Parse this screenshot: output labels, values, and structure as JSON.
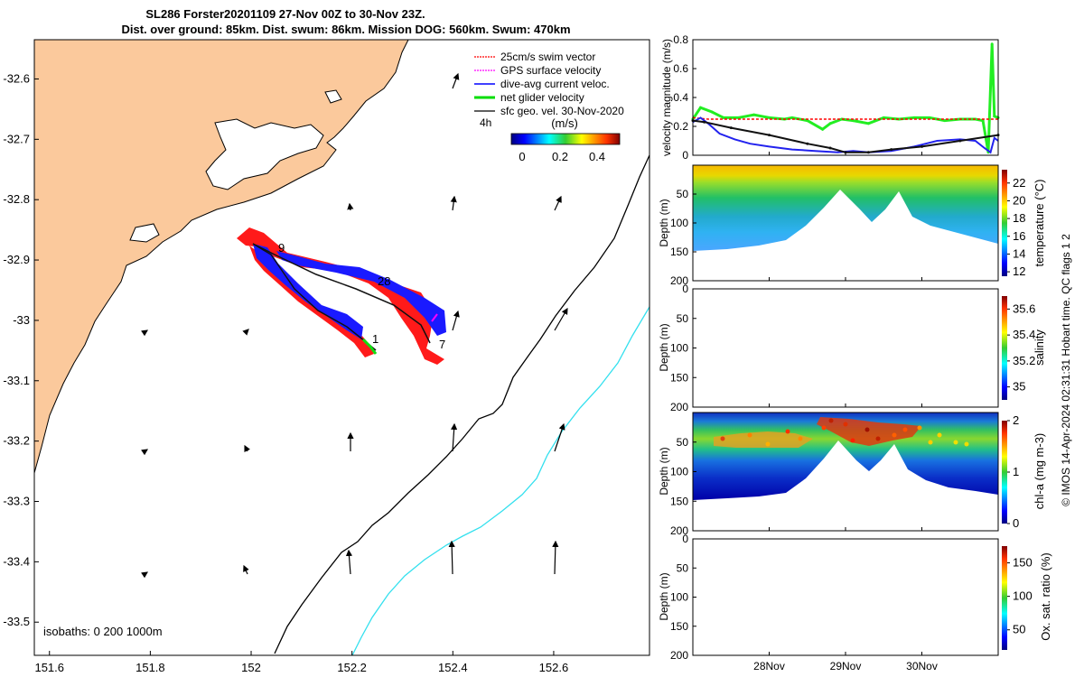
{
  "title_line1": "SL286 Forster20201109 27-Nov 00Z to 30-Nov 23Z.",
  "title_line2": "Dist. over ground: 85km. Dist. swum: 86km. Mission DOG: 560km. Swum: 470km",
  "credit": "© IMOS 14-Apr-2024 02:31:31 Hobart time. QC flags 1  2",
  "map": {
    "x_ticks": [
      "151.6",
      "151.8",
      "152",
      "152.2",
      "152.4",
      "152.6"
    ],
    "y_ticks": [
      "-32.6",
      "-32.7",
      "-32.8",
      "-32.9",
      "-33",
      "-33.1",
      "-33.2",
      "-33.3",
      "-33.4",
      "-33.5"
    ],
    "xlim": [
      151.57,
      152.79
    ],
    "ylim": [
      -33.555,
      -32.535
    ],
    "legend": [
      {
        "label": "25cm/s swim vector",
        "color": "#ff0000"
      },
      {
        "label": "GPS surface velocity",
        "color": "#ff00ff"
      },
      {
        "label": "dive-avg current veloc.",
        "color": "#0000ff"
      },
      {
        "label": "net glider velocity",
        "color": "#00dd00"
      },
      {
        "label": "sfc geo. vel. 30-Nov-2020",
        "color": "#000000"
      }
    ],
    "interval_label": "4h",
    "colorbar_unit": "(m/s)",
    "colorbar_ticks": [
      "0",
      "0.2",
      "0.4"
    ],
    "isobath_text": "isobaths: 0   200  1000m",
    "day_labels": [
      "9",
      "28",
      "1",
      "7"
    ],
    "land_color": "#fbc99c",
    "isobath_200_color": "#000000",
    "isobath_1000_color": "#33e0ee"
  },
  "velocity_panel": {
    "ylabel": "velocity magnitude (m/s)",
    "ylim": [
      0,
      0.8
    ],
    "y_ticks": [
      "0",
      "0.2",
      "0.4",
      "0.6",
      "0.8"
    ],
    "xlim": [
      0,
      4
    ],
    "series": [
      {
        "key": "net",
        "color": "#22ee22",
        "x": [
          0,
          0.1,
          0.25,
          0.4,
          0.6,
          0.8,
          1.0,
          1.2,
          1.3,
          1.5,
          1.7,
          1.8,
          1.95,
          2.1,
          2.3,
          2.5,
          2.7,
          2.9,
          3.1,
          3.3,
          3.5,
          3.7,
          3.8,
          3.87,
          3.92,
          3.95,
          4.0
        ],
        "y": [
          0.25,
          0.33,
          0.3,
          0.26,
          0.26,
          0.28,
          0.26,
          0.25,
          0.26,
          0.24,
          0.18,
          0.22,
          0.25,
          0.24,
          0.22,
          0.26,
          0.25,
          0.26,
          0.26,
          0.24,
          0.25,
          0.25,
          0.24,
          0.02,
          0.77,
          0.27,
          0.26
        ]
      },
      {
        "key": "swim",
        "color": "#ff0000",
        "x": [
          0,
          0.2,
          0.6,
          1.0,
          1.4,
          1.8,
          2.2,
          2.6,
          3.0,
          3.4,
          3.8,
          4.0
        ],
        "y": [
          0.26,
          0.25,
          0.25,
          0.25,
          0.25,
          0.25,
          0.25,
          0.25,
          0.25,
          0.25,
          0.25,
          0.25
        ]
      },
      {
        "key": "current",
        "color": "#2222ee",
        "x": [
          0,
          0.1,
          0.2,
          0.35,
          0.55,
          0.75,
          1.0,
          1.3,
          1.6,
          1.9,
          2.1,
          2.3,
          2.6,
          2.9,
          3.2,
          3.5,
          3.7,
          3.82,
          3.9,
          3.95,
          4.0
        ],
        "y": [
          0.23,
          0.26,
          0.22,
          0.15,
          0.11,
          0.08,
          0.06,
          0.04,
          0.03,
          0.02,
          0.03,
          0.02,
          0.03,
          0.06,
          0.1,
          0.11,
          0.1,
          0.05,
          0.02,
          0.12,
          0.1
        ]
      },
      {
        "key": "geostrophic",
        "color": "#111111",
        "x": [
          0,
          0.15,
          0.5,
          1.0,
          1.5,
          1.8,
          2.0,
          2.3,
          2.6,
          3.0,
          3.5,
          4.0
        ],
        "y": [
          0.24,
          0.23,
          0.19,
          0.14,
          0.08,
          0.05,
          0.02,
          0.02,
          0.04,
          0.06,
          0.1,
          0.14
        ]
      }
    ]
  },
  "profile_panels": [
    {
      "ylabel": "Depth (m)",
      "cbar_label": "temperature (°C)",
      "cbar_ticks": [
        "12",
        "14",
        "16",
        "18",
        "20",
        "22"
      ],
      "cbar_range": [
        11.5,
        23.5
      ],
      "y_ticks": [
        "50",
        "100",
        "150",
        "200"
      ]
    },
    {
      "ylabel": "Depth (m)",
      "cbar_label": "salinity",
      "cbar_ticks": [
        "35",
        "35.2",
        "35.4",
        "35.6"
      ],
      "cbar_range": [
        34.9,
        35.7
      ],
      "y_ticks": [
        "0",
        "50",
        "100",
        "150",
        "200"
      ]
    },
    {
      "ylabel": "Depth (m)",
      "cbar_label": "chl-a (mg m-3)",
      "cbar_ticks": [
        "0",
        "1",
        "2"
      ],
      "cbar_range": [
        0,
        2
      ],
      "y_ticks": [
        "50",
        "100",
        "150",
        "200"
      ]
    },
    {
      "ylabel": "Depth (m)",
      "cbar_label": "Ox. sat. ratio (%)",
      "cbar_ticks": [
        "50",
        "100",
        "150"
      ],
      "cbar_range": [
        20,
        175
      ],
      "y_ticks": [
        "0",
        "50",
        "100",
        "150",
        "200"
      ]
    }
  ],
  "time_axis": {
    "ticks": [
      "28Nov",
      "29Nov",
      "30Nov"
    ],
    "tick_values": [
      1,
      2,
      3
    ]
  }
}
